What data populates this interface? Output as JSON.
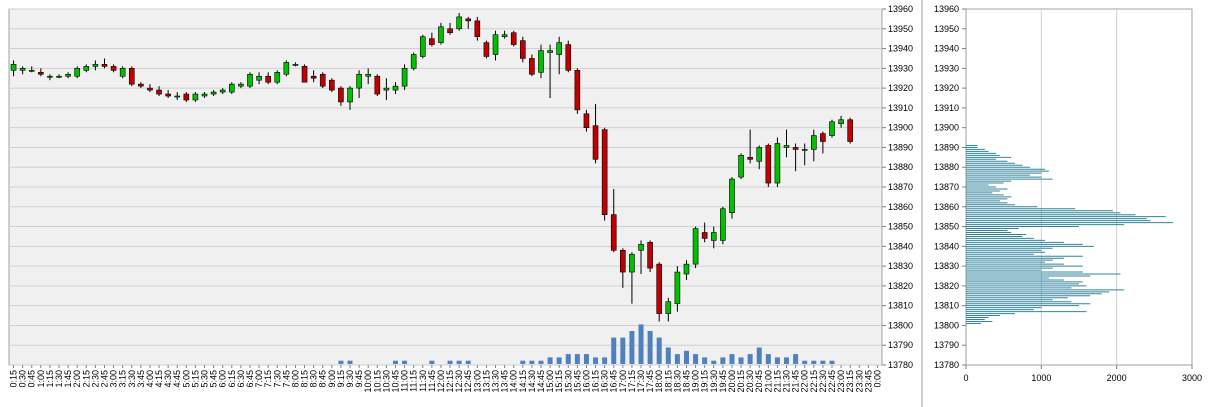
{
  "chart_data": [
    {
      "type": "candlestick",
      "title": "",
      "ylim": [
        13780,
        13960
      ],
      "y_ticks": [
        13960,
        13950,
        13940,
        13930,
        13920,
        13910,
        13900,
        13890,
        13880,
        13870,
        13860,
        13850,
        13840,
        13830,
        13820,
        13810,
        13800,
        13790,
        13780
      ],
      "x_ticks": [
        "0:15",
        "0:30",
        "0:45",
        "1:00",
        "1:15",
        "1:30",
        "1:45",
        "2:00",
        "2:15",
        "2:30",
        "2:45",
        "3:00",
        "3:15",
        "3:30",
        "3:45",
        "4:00",
        "4:15",
        "4:30",
        "4:45",
        "5:00",
        "5:15",
        "5:30",
        "5:45",
        "6:00",
        "6:15",
        "6:30",
        "6:45",
        "7:00",
        "7:15",
        "7:30",
        "7:45",
        "8:00",
        "8:15",
        "8:30",
        "8:45",
        "9:00",
        "9:15",
        "9:30",
        "9:45",
        "10:00",
        "10:15",
        "10:30",
        "10:45",
        "11:00",
        "11:15",
        "11:30",
        "11:45",
        "12:00",
        "12:15",
        "12:30",
        "12:45",
        "13:00",
        "13:15",
        "13:30",
        "13:45",
        "14:00",
        "14:15",
        "14:30",
        "14:45",
        "15:00",
        "15:15",
        "15:30",
        "15:45",
        "16:00",
        "16:15",
        "16:30",
        "16:45",
        "17:00",
        "17:15",
        "17:30",
        "17:45",
        "18:00",
        "18:15",
        "18:30",
        "18:45",
        "19:00",
        "19:15",
        "19:30",
        "19:45",
        "20:00",
        "20:15",
        "20:30",
        "20:45",
        "21:00",
        "21:15",
        "21:30",
        "21:45",
        "22:00",
        "22:15",
        "22:30",
        "22:45",
        "23:00",
        "23:15",
        "23:30",
        "23:45",
        "0:00"
      ],
      "candles": [
        {
          "x": "0:15",
          "o": 13929,
          "h": 13934,
          "l": 13926,
          "c": 13932
        },
        {
          "x": "0:30",
          "o": 13929,
          "h": 13931,
          "l": 13927,
          "c": 13930
        },
        {
          "x": "0:45",
          "o": 13929,
          "h": 13931,
          "l": 13928,
          "c": 13929
        },
        {
          "x": "1:00",
          "o": 13928,
          "h": 13930,
          "l": 13926,
          "c": 13927
        },
        {
          "x": "1:15",
          "o": 13926,
          "h": 13927,
          "l": 13924,
          "c": 13926
        },
        {
          "x": "1:30",
          "o": 13926,
          "h": 13927,
          "l": 13925,
          "c": 13926
        },
        {
          "x": "1:45",
          "o": 13926,
          "h": 13928,
          "l": 13925,
          "c": 13927
        },
        {
          "x": "2:00",
          "o": 13926,
          "h": 13931,
          "l": 13925,
          "c": 13930
        },
        {
          "x": "2:15",
          "o": 13929,
          "h": 13932,
          "l": 13928,
          "c": 13931
        },
        {
          "x": "2:30",
          "o": 13931,
          "h": 13934,
          "l": 13929,
          "c": 13932
        },
        {
          "x": "2:45",
          "o": 13932,
          "h": 13935,
          "l": 13930,
          "c": 13931
        },
        {
          "x": "3:00",
          "o": 13931,
          "h": 13932,
          "l": 13928,
          "c": 13929
        },
        {
          "x": "3:15",
          "o": 13926,
          "h": 13931,
          "l": 13925,
          "c": 13930
        },
        {
          "x": "3:30",
          "o": 13930,
          "h": 13931,
          "l": 13921,
          "c": 13922
        },
        {
          "x": "3:45",
          "o": 13922,
          "h": 13923,
          "l": 13920,
          "c": 13921
        },
        {
          "x": "4:00",
          "o": 13920,
          "h": 13922,
          "l": 13918,
          "c": 13919
        },
        {
          "x": "4:15",
          "o": 13919,
          "h": 13921,
          "l": 13916,
          "c": 13917
        },
        {
          "x": "4:30",
          "o": 13917,
          "h": 13919,
          "l": 13915,
          "c": 13916
        },
        {
          "x": "4:45",
          "o": 13916,
          "h": 13918,
          "l": 13914,
          "c": 13916
        },
        {
          "x": "5:00",
          "o": 13917,
          "h": 13918,
          "l": 13913,
          "c": 13914
        },
        {
          "x": "5:15",
          "o": 13914,
          "h": 13918,
          "l": 13913,
          "c": 13917
        },
        {
          "x": "5:30",
          "o": 13916,
          "h": 13918,
          "l": 13915,
          "c": 13917
        },
        {
          "x": "5:45",
          "o": 13917,
          "h": 13919,
          "l": 13916,
          "c": 13918
        },
        {
          "x": "6:00",
          "o": 13918,
          "h": 13920,
          "l": 13917,
          "c": 13919
        },
        {
          "x": "6:15",
          "o": 13918,
          "h": 13923,
          "l": 13917,
          "c": 13922
        },
        {
          "x": "6:30",
          "o": 13921,
          "h": 13923,
          "l": 13920,
          "c": 13922
        },
        {
          "x": "6:45",
          "o": 13921,
          "h": 13928,
          "l": 13920,
          "c": 13927
        },
        {
          "x": "7:00",
          "o": 13924,
          "h": 13928,
          "l": 13922,
          "c": 13926
        },
        {
          "x": "7:15",
          "o": 13926,
          "h": 13928,
          "l": 13922,
          "c": 13923
        },
        {
          "x": "7:30",
          "o": 13923,
          "h": 13929,
          "l": 13922,
          "c": 13928
        },
        {
          "x": "7:45",
          "o": 13927,
          "h": 13934,
          "l": 13926,
          "c": 13933
        },
        {
          "x": "8:00",
          "o": 13932,
          "h": 13933,
          "l": 13931,
          "c": 13932
        },
        {
          "x": "8:15",
          "o": 13931,
          "h": 13932,
          "l": 13923,
          "c": 13923
        },
        {
          "x": "8:30",
          "o": 13926,
          "h": 13929,
          "l": 13923,
          "c": 13925
        },
        {
          "x": "8:45",
          "o": 13927,
          "h": 13928,
          "l": 13920,
          "c": 13921
        },
        {
          "x": "9:00",
          "o": 13924,
          "h": 13925,
          "l": 13918,
          "c": 13919
        },
        {
          "x": "9:15",
          "o": 13920,
          "h": 13921,
          "l": 13911,
          "c": 13913
        },
        {
          "x": "9:30",
          "o": 13913,
          "h": 13921,
          "l": 13909,
          "c": 13920
        },
        {
          "x": "9:45",
          "o": 13920,
          "h": 13929,
          "l": 13915,
          "c": 13927
        },
        {
          "x": "10:00",
          "o": 13926,
          "h": 13930,
          "l": 13922,
          "c": 13927
        },
        {
          "x": "10:15",
          "o": 13926,
          "h": 13927,
          "l": 13916,
          "c": 13917
        },
        {
          "x": "10:30",
          "o": 13919,
          "h": 13925,
          "l": 13914,
          "c": 13920
        },
        {
          "x": "10:45",
          "o": 13919,
          "h": 13923,
          "l": 13917,
          "c": 13921
        },
        {
          "x": "11:00",
          "o": 13921,
          "h": 13932,
          "l": 13919,
          "c": 13930
        },
        {
          "x": "11:15",
          "o": 13930,
          "h": 13938,
          "l": 13929,
          "c": 13937
        },
        {
          "x": "11:30",
          "o": 13936,
          "h": 13947,
          "l": 13935,
          "c": 13946
        },
        {
          "x": "11:45",
          "o": 13945,
          "h": 13948,
          "l": 13941,
          "c": 13942
        },
        {
          "x": "12:00",
          "o": 13943,
          "h": 13953,
          "l": 13942,
          "c": 13951
        },
        {
          "x": "12:15",
          "o": 13950,
          "h": 13953,
          "l": 13947,
          "c": 13948
        },
        {
          "x": "12:30",
          "o": 13950,
          "h": 13958,
          "l": 13949,
          "c": 13956
        },
        {
          "x": "12:45",
          "o": 13955,
          "h": 13956,
          "l": 13950,
          "c": 13954
        },
        {
          "x": "13:00",
          "o": 13954,
          "h": 13956,
          "l": 13944,
          "c": 13946
        },
        {
          "x": "13:15",
          "o": 13943,
          "h": 13944,
          "l": 13935,
          "c": 13936
        },
        {
          "x": "13:30",
          "o": 13937,
          "h": 13949,
          "l": 13934,
          "c": 13947
        },
        {
          "x": "13:45",
          "o": 13946,
          "h": 13949,
          "l": 13945,
          "c": 13947
        },
        {
          "x": "14:00",
          "o": 13948,
          "h": 13949,
          "l": 13941,
          "c": 13942
        },
        {
          "x": "14:15",
          "o": 13944,
          "h": 13946,
          "l": 13933,
          "c": 13935
        },
        {
          "x": "14:30",
          "o": 13935,
          "h": 13937,
          "l": 13926,
          "c": 13927
        },
        {
          "x": "14:45",
          "o": 13928,
          "h": 13942,
          "l": 13925,
          "c": 13939
        },
        {
          "x": "15:00",
          "o": 13938,
          "h": 13942,
          "l": 13915,
          "c": 13939
        },
        {
          "x": "15:15",
          "o": 13937,
          "h": 13946,
          "l": 13927,
          "c": 13943
        },
        {
          "x": "15:30",
          "o": 13942,
          "h": 13944,
          "l": 13928,
          "c": 13929
        },
        {
          "x": "15:45",
          "o": 13929,
          "h": 13930,
          "l": 13907,
          "c": 13909
        },
        {
          "x": "16:00",
          "o": 13907,
          "h": 13909,
          "l": 13898,
          "c": 13900
        },
        {
          "x": "16:15",
          "o": 13901,
          "h": 13912,
          "l": 13882,
          "c": 13884
        },
        {
          "x": "16:30",
          "o": 13899,
          "h": 13900,
          "l": 13853,
          "c": 13856
        },
        {
          "x": "16:45",
          "o": 13856,
          "h": 13869,
          "l": 13837,
          "c": 13838
        },
        {
          "x": "17:00",
          "o": 13838,
          "h": 13839,
          "l": 13819,
          "c": 13827
        },
        {
          "x": "17:15",
          "o": 13827,
          "h": 13837,
          "l": 13811,
          "c": 13836
        },
        {
          "x": "17:30",
          "o": 13838,
          "h": 13843,
          "l": 13826,
          "c": 13841
        },
        {
          "x": "17:45",
          "o": 13842,
          "h": 13843,
          "l": 13827,
          "c": 13829
        },
        {
          "x": "18:00",
          "o": 13831,
          "h": 13832,
          "l": 13802,
          "c": 13806
        },
        {
          "x": "18:15",
          "o": 13806,
          "h": 13814,
          "l": 13802,
          "c": 13812
        },
        {
          "x": "18:30",
          "o": 13811,
          "h": 13830,
          "l": 13807,
          "c": 13827
        },
        {
          "x": "18:45",
          "o": 13826,
          "h": 13833,
          "l": 13823,
          "c": 13831
        },
        {
          "x": "19:00",
          "o": 13831,
          "h": 13850,
          "l": 13829,
          "c": 13849
        },
        {
          "x": "19:15",
          "o": 13847,
          "h": 13852,
          "l": 13842,
          "c": 13844
        },
        {
          "x": "19:30",
          "o": 13843,
          "h": 13850,
          "l": 13839,
          "c": 13847
        },
        {
          "x": "19:45",
          "o": 13843,
          "h": 13860,
          "l": 13841,
          "c": 13859
        },
        {
          "x": "20:00",
          "o": 13857,
          "h": 13875,
          "l": 13854,
          "c": 13874
        },
        {
          "x": "20:15",
          "o": 13875,
          "h": 13887,
          "l": 13874,
          "c": 13886
        },
        {
          "x": "20:30",
          "o": 13885,
          "h": 13899,
          "l": 13882,
          "c": 13884
        },
        {
          "x": "20:45",
          "o": 13883,
          "h": 13891,
          "l": 13879,
          "c": 13890
        },
        {
          "x": "21:00",
          "o": 13891,
          "h": 13892,
          "l": 13870,
          "c": 13872
        },
        {
          "x": "21:15",
          "o": 13872,
          "h": 13895,
          "l": 13870,
          "c": 13892
        },
        {
          "x": "21:30",
          "o": 13890,
          "h": 13899,
          "l": 13885,
          "c": 13891
        },
        {
          "x": "21:45",
          "o": 13890,
          "h": 13892,
          "l": 13878,
          "c": 13889
        },
        {
          "x": "22:00",
          "o": 13889,
          "h": 13892,
          "l": 13881,
          "c": 13889
        },
        {
          "x": "22:15",
          "o": 13889,
          "h": 13899,
          "l": 13883,
          "c": 13896
        },
        {
          "x": "22:30",
          "o": 13897,
          "h": 13898,
          "l": 13887,
          "c": 13893
        },
        {
          "x": "22:45",
          "o": 13896,
          "h": 13904,
          "l": 13895,
          "c": 13903
        },
        {
          "x": "23:00",
          "o": 13902,
          "h": 13906,
          "l": 13900,
          "c": 13904
        },
        {
          "x": "23:15",
          "o": 13904,
          "h": 13905,
          "l": 13892,
          "c": 13893
        }
      ],
      "volume": [
        0,
        0,
        0,
        0,
        0,
        0,
        0,
        0,
        0,
        0,
        0,
        0,
        0,
        0,
        0,
        0,
        0,
        0,
        0,
        0,
        0,
        0,
        0,
        0,
        0,
        0,
        0,
        0,
        0,
        0,
        0,
        0,
        0,
        0,
        0,
        0,
        1,
        1,
        0,
        0,
        0,
        0,
        1,
        1,
        0,
        0,
        1,
        0,
        1,
        1,
        1,
        0,
        0,
        0,
        0,
        0,
        1,
        1,
        1,
        2,
        2,
        3,
        3,
        3,
        2,
        2,
        8,
        8,
        10,
        12,
        10,
        8,
        5,
        3,
        4,
        3,
        2,
        1,
        2,
        3,
        2,
        3,
        5,
        3,
        2,
        2,
        3,
        1,
        1,
        1,
        1,
        0,
        0,
        0,
        0,
        0
      ],
      "up_color": "#00c000",
      "down_color": "#c00000",
      "volume_color": "#4f81bd"
    },
    {
      "type": "bar",
      "orientation": "horizontal",
      "title": "",
      "ylim": [
        13780,
        13960
      ],
      "xlim": [
        0,
        3000
      ],
      "y_ticks": [
        13960,
        13950,
        13940,
        13930,
        13920,
        13910,
        13900,
        13890,
        13880,
        13870,
        13860,
        13850,
        13840,
        13830,
        13820,
        13810,
        13800,
        13790,
        13780
      ],
      "x_ticks": [
        "0",
        "1000",
        "2000",
        "3000"
      ],
      "bar_color": "#31849b",
      "levels": {
        "start": 13801,
        "step": 1,
        "values": [
          200,
          350,
          250,
          300,
          450,
          650,
          1600,
          900,
          1000,
          1500,
          1650,
          1400,
          1150,
          1350,
          1650,
          1800,
          1900,
          2100,
          1400,
          1600,
          1500,
          1550,
          1300,
          1100,
          1650,
          2050,
          1550,
          1000,
          1150,
          1550,
          1300,
          1050,
          1150,
          1300,
          1550,
          900,
          1050,
          1000,
          1150,
          1700,
          1550,
          1300,
          1050,
          900,
          750,
          800,
          600,
          550,
          700,
          1500,
          2100,
          2750,
          2450,
          2400,
          2650,
          2250,
          2050,
          1950,
          1450,
          950,
          650,
          550,
          450,
          550,
          600,
          500,
          350,
          450,
          550,
          400,
          300,
          500,
          600,
          1150,
          1000,
          850,
          1000,
          1100,
          1050,
          850,
          750,
          650,
          550,
          400,
          600,
          450,
          400,
          300,
          250,
          150,
          150
        ]
      }
    }
  ]
}
